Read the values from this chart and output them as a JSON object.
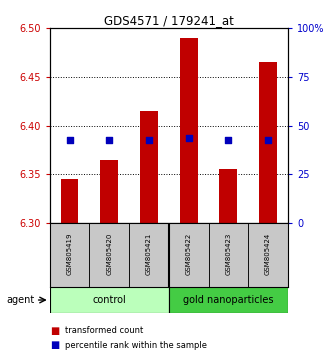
{
  "title": "GDS4571 / 179241_at",
  "samples": [
    "GSM805419",
    "GSM805420",
    "GSM805421",
    "GSM805422",
    "GSM805423",
    "GSM805424"
  ],
  "transformed_counts": [
    6.345,
    6.365,
    6.415,
    6.49,
    6.355,
    6.465
  ],
  "percentile_ranks": [
    6.385,
    6.385,
    6.385,
    6.387,
    6.385,
    6.385
  ],
  "ylim_left": [
    6.3,
    6.5
  ],
  "ylim_right": [
    0,
    100
  ],
  "yticks_left": [
    6.3,
    6.35,
    6.4,
    6.45,
    6.5
  ],
  "yticks_right": [
    0,
    25,
    50,
    75,
    100
  ],
  "ytick_labels_right": [
    "0",
    "25",
    "50",
    "75",
    "100%"
  ],
  "bar_color": "#C00000",
  "dot_color": "#0000BB",
  "bar_width": 0.45,
  "control_color": "#BBFFBB",
  "nano_color": "#44CC44",
  "agent_label": "agent",
  "legend_items": [
    {
      "label": "transformed count",
      "color": "#C00000"
    },
    {
      "label": "percentile rank within the sample",
      "color": "#0000BB"
    }
  ],
  "plot_bg": "#FFFFFF",
  "title_color": "#000000",
  "left_tick_color": "#CC0000",
  "right_tick_color": "#0000CC",
  "grid_dotted_ticks": [
    6.35,
    6.4,
    6.45
  ]
}
